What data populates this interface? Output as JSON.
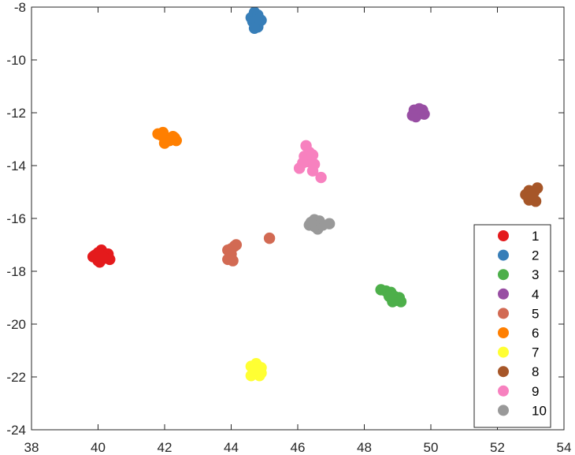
{
  "chart_data": {
    "type": "scatter",
    "title": "",
    "xlabel": "",
    "ylabel": "",
    "xlim": [
      38,
      54
    ],
    "ylim": [
      -24,
      -8
    ],
    "xticks": [
      "38",
      "40",
      "42",
      "44",
      "46",
      "48",
      "50",
      "52",
      "54"
    ],
    "yticks": [
      "-8",
      "-10",
      "-12",
      "-14",
      "-16",
      "-18",
      "-20",
      "-22",
      "-24"
    ],
    "grid": false,
    "legend_position": "bottom-right",
    "series": [
      {
        "name": "1",
        "color": "#e41a1c",
        "points": [
          [
            39.9,
            -17.4
          ],
          [
            40.0,
            -17.3
          ],
          [
            40.1,
            -17.2
          ],
          [
            40.3,
            -17.35
          ],
          [
            40.2,
            -17.5
          ],
          [
            40.35,
            -17.55
          ],
          [
            40.0,
            -17.6
          ],
          [
            39.85,
            -17.45
          ],
          [
            40.15,
            -17.45
          ],
          [
            40.05,
            -17.65
          ]
        ]
      },
      {
        "name": "2",
        "color": "#377eb8",
        "points": [
          [
            44.6,
            -8.4
          ],
          [
            44.7,
            -8.2
          ],
          [
            44.8,
            -8.3
          ],
          [
            44.9,
            -8.5
          ],
          [
            44.75,
            -8.6
          ],
          [
            44.65,
            -8.55
          ],
          [
            44.8,
            -8.75
          ],
          [
            44.7,
            -8.8
          ],
          [
            44.85,
            -8.45
          ]
        ]
      },
      {
        "name": "3",
        "color": "#4daf4a",
        "points": [
          [
            48.5,
            -18.7
          ],
          [
            48.65,
            -18.75
          ],
          [
            48.8,
            -18.8
          ],
          [
            48.9,
            -18.95
          ],
          [
            49.05,
            -19.0
          ],
          [
            48.95,
            -19.1
          ],
          [
            49.1,
            -19.15
          ],
          [
            48.85,
            -19.15
          ],
          [
            48.75,
            -18.95
          ]
        ]
      },
      {
        "name": "4",
        "color": "#984ea3",
        "points": [
          [
            49.5,
            -11.9
          ],
          [
            49.6,
            -12.05
          ],
          [
            49.7,
            -11.95
          ],
          [
            49.8,
            -12.05
          ],
          [
            49.65,
            -11.85
          ],
          [
            49.45,
            -12.1
          ],
          [
            49.55,
            -12.15
          ],
          [
            49.75,
            -11.9
          ]
        ]
      },
      {
        "name": "5",
        "color": "#d26a53",
        "points": [
          [
            43.9,
            -17.2
          ],
          [
            44.0,
            -17.15
          ],
          [
            44.1,
            -17.05
          ],
          [
            44.15,
            -17.0
          ],
          [
            44.0,
            -17.35
          ],
          [
            43.9,
            -17.55
          ],
          [
            44.05,
            -17.6
          ],
          [
            45.15,
            -16.75
          ]
        ]
      },
      {
        "name": "6",
        "color": "#ff7f00",
        "points": [
          [
            41.8,
            -12.8
          ],
          [
            41.95,
            -12.75
          ],
          [
            42.05,
            -12.95
          ],
          [
            42.25,
            -12.9
          ],
          [
            42.35,
            -13.05
          ],
          [
            42.15,
            -13.05
          ],
          [
            42.0,
            -13.15
          ],
          [
            42.3,
            -12.95
          ],
          [
            41.9,
            -12.85
          ]
        ]
      },
      {
        "name": "7",
        "color": "#ffff33",
        "points": [
          [
            44.6,
            -21.6
          ],
          [
            44.75,
            -21.5
          ],
          [
            44.9,
            -21.65
          ],
          [
            44.7,
            -21.85
          ],
          [
            44.85,
            -21.95
          ],
          [
            44.6,
            -21.95
          ],
          [
            44.75,
            -21.75
          ],
          [
            44.9,
            -21.85
          ]
        ]
      },
      {
        "name": "8",
        "color": "#a65628",
        "points": [
          [
            52.85,
            -15.1
          ],
          [
            52.95,
            -14.95
          ],
          [
            53.1,
            -15.0
          ],
          [
            53.2,
            -14.85
          ],
          [
            53.0,
            -15.2
          ],
          [
            53.15,
            -15.35
          ],
          [
            52.95,
            -15.3
          ],
          [
            53.05,
            -15.15
          ]
        ]
      },
      {
        "name": "9",
        "color": "#f781bf",
        "points": [
          [
            46.25,
            -13.25
          ],
          [
            46.35,
            -13.5
          ],
          [
            46.2,
            -13.65
          ],
          [
            46.45,
            -13.6
          ],
          [
            46.3,
            -13.85
          ],
          [
            46.15,
            -13.9
          ],
          [
            46.05,
            -14.1
          ],
          [
            46.5,
            -13.95
          ],
          [
            46.45,
            -14.2
          ],
          [
            46.7,
            -14.45
          ]
        ]
      },
      {
        "name": "10",
        "color": "#999999",
        "points": [
          [
            46.35,
            -16.25
          ],
          [
            46.5,
            -16.05
          ],
          [
            46.65,
            -16.1
          ],
          [
            46.75,
            -16.25
          ],
          [
            46.6,
            -16.4
          ],
          [
            46.5,
            -16.3
          ],
          [
            46.95,
            -16.2
          ],
          [
            46.4,
            -16.15
          ]
        ]
      }
    ]
  }
}
